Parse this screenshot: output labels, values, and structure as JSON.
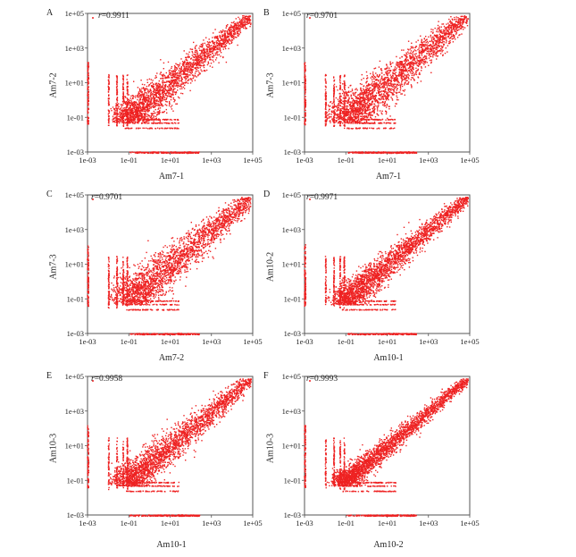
{
  "colors": {
    "points": "#ee2222",
    "frame": "#555555",
    "background": "#ffffff"
  },
  "chart_data": [
    {
      "type": "scatter",
      "panel": "A",
      "xlabel": "Am7-1",
      "ylabel": "Am7-2",
      "r_label": "r",
      "r_value": "=0.9911",
      "xscale": "log",
      "yscale": "log",
      "xlim": [
        0.001,
        100000
      ],
      "ylim": [
        0.001,
        100000
      ],
      "xticks": [
        "1e-03",
        "1e-01",
        "1e+01",
        "1e+03",
        "1e+05"
      ],
      "yticks": [
        "1e-03",
        "1e-01",
        "1e+01",
        "1e+03",
        "1e+05"
      ],
      "spread": 0.55
    },
    {
      "type": "scatter",
      "panel": "B",
      "xlabel": "Am7-1",
      "ylabel": "Am7-3",
      "r_label": "r",
      "r_value": "=0.9701",
      "xscale": "log",
      "yscale": "log",
      "xlim": [
        0.001,
        100000
      ],
      "ylim": [
        0.001,
        100000
      ],
      "xticks": [
        "1e-03",
        "1e-01",
        "1e+01",
        "1e+03",
        "1e+05"
      ],
      "yticks": [
        "1e-03",
        "1e-01",
        "1e+01",
        "1e+03",
        "1e+05"
      ],
      "spread": 0.65
    },
    {
      "type": "scatter",
      "panel": "C",
      "xlabel": "Am7-2",
      "ylabel": "Am7-3",
      "r_label": "r",
      "r_value": "=0.9701",
      "xscale": "log",
      "yscale": "log",
      "xlim": [
        0.001,
        100000
      ],
      "ylim": [
        0.001,
        100000
      ],
      "xticks": [
        "1e-03",
        "1e-01",
        "1e+01",
        "1e+03",
        "1e+05"
      ],
      "yticks": [
        "1e-03",
        "1e-01",
        "1e+01",
        "1e+03",
        "1e+05"
      ],
      "spread": 0.65
    },
    {
      "type": "scatter",
      "panel": "D",
      "xlabel": "Am10-1",
      "ylabel": "Am10-2",
      "r_label": "r",
      "r_value": "=0.9971",
      "xscale": "log",
      "yscale": "log",
      "xlim": [
        0.001,
        100000
      ],
      "ylim": [
        0.001,
        100000
      ],
      "xticks": [
        "1e-03",
        "1e-01",
        "1e+01",
        "1e+03",
        "1e+05"
      ],
      "yticks": [
        "1e-03",
        "1e-01",
        "1e+01",
        "1e+03",
        "1e+05"
      ],
      "spread": 0.45
    },
    {
      "type": "scatter",
      "panel": "E",
      "xlabel": "Am10-1",
      "ylabel": "Am10-3",
      "r_label": "r",
      "r_value": "=0.9958",
      "xscale": "log",
      "yscale": "log",
      "xlim": [
        0.001,
        100000
      ],
      "ylim": [
        0.001,
        100000
      ],
      "xticks": [
        "1e-03",
        "1e-01",
        "1e+01",
        "1e+03",
        "1e+05"
      ],
      "yticks": [
        "1e-03",
        "1e-01",
        "1e+01",
        "1e+03",
        "1e+05"
      ],
      "spread": 0.5
    },
    {
      "type": "scatter",
      "panel": "F",
      "xlabel": "Am10-2",
      "ylabel": "Am10-3",
      "r_label": "r",
      "r_value": "=0.9993",
      "xscale": "log",
      "yscale": "log",
      "xlim": [
        0.001,
        100000
      ],
      "ylim": [
        0.001,
        100000
      ],
      "xticks": [
        "1e-03",
        "1e-01",
        "1e+01",
        "1e+03",
        "1e+05"
      ],
      "yticks": [
        "1e-03",
        "1e-01",
        "1e+01",
        "1e+03",
        "1e+05"
      ],
      "spread": 0.35
    }
  ]
}
